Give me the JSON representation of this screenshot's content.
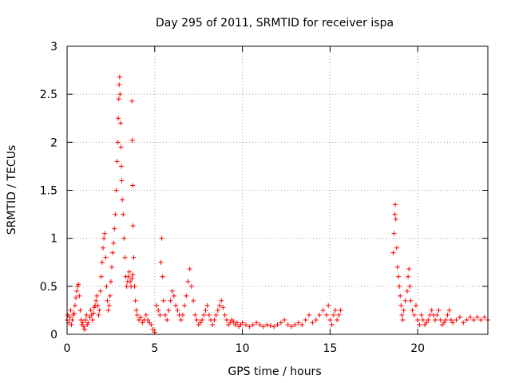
{
  "chart_data": {
    "type": "scatter",
    "title": "Day 295 of 2011, SRMTID for receiver ispa",
    "xlabel": "GPS time / hours",
    "ylabel": "SRMTID / TECUs",
    "xlim": [
      0,
      24
    ],
    "ylim": [
      0,
      3
    ],
    "xticks": [
      0,
      5,
      10,
      15,
      20
    ],
    "yticks": [
      0,
      0.5,
      1,
      1.5,
      2,
      2.5,
      3
    ],
    "xtick_labels": [
      "0",
      "5",
      "10",
      "15",
      "20"
    ],
    "ytick_labels": [
      "0",
      "0.5",
      "1",
      "1.5",
      "2",
      "2.5",
      "3"
    ],
    "grid": true,
    "marker": "+",
    "marker_color": "#ff0000",
    "series": [
      {
        "name": "SRMTID",
        "points": [
          [
            0.0,
            0.15
          ],
          [
            0.05,
            0.2
          ],
          [
            0.1,
            0.12
          ],
          [
            0.15,
            0.18
          ],
          [
            0.2,
            0.25
          ],
          [
            0.25,
            0.1
          ],
          [
            0.3,
            0.15
          ],
          [
            0.35,
            0.2
          ],
          [
            0.4,
            0.22
          ],
          [
            0.45,
            0.3
          ],
          [
            0.5,
            0.38
          ],
          [
            0.55,
            0.45
          ],
          [
            0.6,
            0.5
          ],
          [
            0.65,
            0.52
          ],
          [
            0.7,
            0.4
          ],
          [
            0.75,
            0.25
          ],
          [
            0.8,
            0.15
          ],
          [
            0.85,
            0.1
          ],
          [
            0.9,
            0.12
          ],
          [
            0.95,
            0.08
          ],
          [
            1.0,
            0.05
          ],
          [
            1.05,
            0.15
          ],
          [
            1.1,
            0.2
          ],
          [
            1.15,
            0.1
          ],
          [
            1.2,
            0.12
          ],
          [
            1.3,
            0.18
          ],
          [
            1.35,
            0.25
          ],
          [
            1.4,
            0.2
          ],
          [
            1.45,
            0.15
          ],
          [
            1.5,
            0.22
          ],
          [
            1.55,
            0.28
          ],
          [
            1.6,
            0.3
          ],
          [
            1.65,
            0.35
          ],
          [
            1.7,
            0.4
          ],
          [
            1.75,
            0.3
          ],
          [
            1.8,
            0.2
          ],
          [
            1.85,
            0.25
          ],
          [
            1.9,
            0.45
          ],
          [
            1.95,
            0.6
          ],
          [
            2.0,
            0.75
          ],
          [
            2.05,
            0.9
          ],
          [
            2.1,
            1.0
          ],
          [
            2.15,
            1.05
          ],
          [
            2.2,
            0.8
          ],
          [
            2.25,
            0.5
          ],
          [
            2.3,
            0.35
          ],
          [
            2.35,
            0.25
          ],
          [
            2.4,
            0.3
          ],
          [
            2.45,
            0.4
          ],
          [
            2.5,
            0.55
          ],
          [
            2.55,
            0.7
          ],
          [
            2.6,
            0.85
          ],
          [
            2.65,
            0.95
          ],
          [
            2.7,
            1.1
          ],
          [
            2.75,
            1.25
          ],
          [
            2.8,
            1.5
          ],
          [
            2.85,
            1.8
          ],
          [
            2.9,
            2.0
          ],
          [
            2.92,
            2.25
          ],
          [
            2.95,
            2.45
          ],
          [
            2.97,
            2.6
          ],
          [
            3.0,
            2.68
          ],
          [
            3.02,
            2.5
          ],
          [
            3.05,
            2.2
          ],
          [
            3.08,
            1.95
          ],
          [
            3.1,
            1.75
          ],
          [
            3.12,
            1.6
          ],
          [
            3.15,
            1.4
          ],
          [
            3.2,
            1.25
          ],
          [
            3.25,
            1.0
          ],
          [
            3.3,
            0.8
          ],
          [
            3.35,
            0.6
          ],
          [
            3.4,
            0.5
          ],
          [
            3.45,
            0.55
          ],
          [
            3.5,
            0.6
          ],
          [
            3.55,
            0.65
          ],
          [
            3.6,
            0.55
          ],
          [
            3.65,
            0.5
          ],
          [
            3.7,
            0.58
          ],
          [
            3.75,
            0.62
          ],
          [
            3.7,
            2.43
          ],
          [
            3.72,
            2.02
          ],
          [
            3.74,
            1.55
          ],
          [
            3.76,
            1.13
          ],
          [
            3.8,
            0.8
          ],
          [
            3.85,
            0.5
          ],
          [
            3.9,
            0.35
          ],
          [
            3.95,
            0.25
          ],
          [
            4.0,
            0.2
          ],
          [
            4.1,
            0.15
          ],
          [
            4.2,
            0.18
          ],
          [
            4.3,
            0.12
          ],
          [
            4.4,
            0.15
          ],
          [
            4.5,
            0.2
          ],
          [
            4.6,
            0.15
          ],
          [
            4.7,
            0.12
          ],
          [
            4.8,
            0.1
          ],
          [
            4.9,
            0.05
          ],
          [
            5.0,
            0.02
          ],
          [
            5.1,
            0.3
          ],
          [
            5.2,
            0.25
          ],
          [
            5.3,
            0.2
          ],
          [
            5.35,
            0.75
          ],
          [
            5.4,
            1.0
          ],
          [
            5.45,
            0.6
          ],
          [
            5.5,
            0.35
          ],
          [
            5.6,
            0.2
          ],
          [
            5.7,
            0.15
          ],
          [
            5.8,
            0.25
          ],
          [
            5.9,
            0.35
          ],
          [
            6.0,
            0.45
          ],
          [
            6.1,
            0.4
          ],
          [
            6.2,
            0.3
          ],
          [
            6.3,
            0.25
          ],
          [
            6.4,
            0.2
          ],
          [
            6.5,
            0.15
          ],
          [
            6.6,
            0.2
          ],
          [
            6.7,
            0.3
          ],
          [
            6.8,
            0.4
          ],
          [
            6.9,
            0.55
          ],
          [
            7.0,
            0.68
          ],
          [
            7.1,
            0.5
          ],
          [
            7.2,
            0.35
          ],
          [
            7.3,
            0.2
          ],
          [
            7.4,
            0.15
          ],
          [
            7.5,
            0.1
          ],
          [
            7.6,
            0.12
          ],
          [
            7.7,
            0.15
          ],
          [
            7.8,
            0.2
          ],
          [
            7.9,
            0.25
          ],
          [
            8.0,
            0.3
          ],
          [
            8.1,
            0.2
          ],
          [
            8.2,
            0.15
          ],
          [
            8.3,
            0.1
          ],
          [
            8.4,
            0.15
          ],
          [
            8.5,
            0.2
          ],
          [
            8.6,
            0.25
          ],
          [
            8.7,
            0.3
          ],
          [
            8.8,
            0.35
          ],
          [
            8.9,
            0.28
          ],
          [
            9.0,
            0.2
          ],
          [
            9.1,
            0.15
          ],
          [
            9.2,
            0.1
          ],
          [
            9.3,
            0.12
          ],
          [
            9.4,
            0.15
          ],
          [
            9.5,
            0.13
          ],
          [
            9.6,
            0.1
          ],
          [
            9.7,
            0.12
          ],
          [
            9.8,
            0.08
          ],
          [
            9.9,
            0.1
          ],
          [
            10.0,
            0.12
          ],
          [
            10.2,
            0.1
          ],
          [
            10.4,
            0.08
          ],
          [
            10.6,
            0.1
          ],
          [
            10.8,
            0.12
          ],
          [
            11.0,
            0.1
          ],
          [
            11.2,
            0.08
          ],
          [
            11.4,
            0.1
          ],
          [
            11.6,
            0.09
          ],
          [
            11.8,
            0.08
          ],
          [
            12.0,
            0.1
          ],
          [
            12.2,
            0.12
          ],
          [
            12.4,
            0.15
          ],
          [
            12.6,
            0.1
          ],
          [
            12.8,
            0.08
          ],
          [
            13.0,
            0.1
          ],
          [
            13.2,
            0.12
          ],
          [
            13.4,
            0.1
          ],
          [
            13.6,
            0.15
          ],
          [
            13.8,
            0.2
          ],
          [
            14.0,
            0.12
          ],
          [
            14.2,
            0.15
          ],
          [
            14.4,
            0.2
          ],
          [
            14.6,
            0.25
          ],
          [
            14.8,
            0.2
          ],
          [
            14.9,
            0.3
          ],
          [
            15.0,
            0.15
          ],
          [
            15.1,
            0.1
          ],
          [
            15.2,
            0.2
          ],
          [
            15.3,
            0.25
          ],
          [
            15.4,
            0.15
          ],
          [
            15.5,
            0.2
          ],
          [
            15.6,
            0.25
          ],
          [
            18.6,
            0.85
          ],
          [
            18.65,
            1.05
          ],
          [
            18.7,
            1.25
          ],
          [
            18.72,
            1.35
          ],
          [
            18.75,
            1.2
          ],
          [
            18.8,
            0.9
          ],
          [
            18.85,
            0.7
          ],
          [
            18.9,
            0.6
          ],
          [
            18.95,
            0.5
          ],
          [
            19.0,
            0.4
          ],
          [
            19.05,
            0.3
          ],
          [
            19.1,
            0.2
          ],
          [
            19.15,
            0.15
          ],
          [
            19.2,
            0.25
          ],
          [
            19.3,
            0.35
          ],
          [
            19.4,
            0.45
          ],
          [
            19.45,
            0.6
          ],
          [
            19.5,
            0.68
          ],
          [
            19.55,
            0.5
          ],
          [
            19.6,
            0.35
          ],
          [
            19.7,
            0.25
          ],
          [
            19.8,
            0.2
          ],
          [
            19.9,
            0.3
          ],
          [
            20.0,
            0.15
          ],
          [
            20.1,
            0.1
          ],
          [
            20.2,
            0.2
          ],
          [
            20.3,
            0.15
          ],
          [
            20.4,
            0.1
          ],
          [
            20.5,
            0.12
          ],
          [
            20.6,
            0.15
          ],
          [
            20.7,
            0.2
          ],
          [
            20.8,
            0.25
          ],
          [
            20.9,
            0.2
          ],
          [
            21.0,
            0.15
          ],
          [
            21.1,
            0.2
          ],
          [
            21.2,
            0.25
          ],
          [
            21.3,
            0.15
          ],
          [
            21.4,
            0.1
          ],
          [
            21.5,
            0.12
          ],
          [
            21.6,
            0.15
          ],
          [
            21.7,
            0.2
          ],
          [
            21.8,
            0.25
          ],
          [
            21.9,
            0.15
          ],
          [
            22.0,
            0.12
          ],
          [
            22.2,
            0.15
          ],
          [
            22.4,
            0.18
          ],
          [
            22.6,
            0.12
          ],
          [
            22.8,
            0.15
          ],
          [
            23.0,
            0.18
          ],
          [
            23.2,
            0.15
          ],
          [
            23.4,
            0.18
          ],
          [
            23.6,
            0.15
          ],
          [
            23.8,
            0.18
          ],
          [
            24.0,
            0.15
          ]
        ]
      }
    ]
  }
}
